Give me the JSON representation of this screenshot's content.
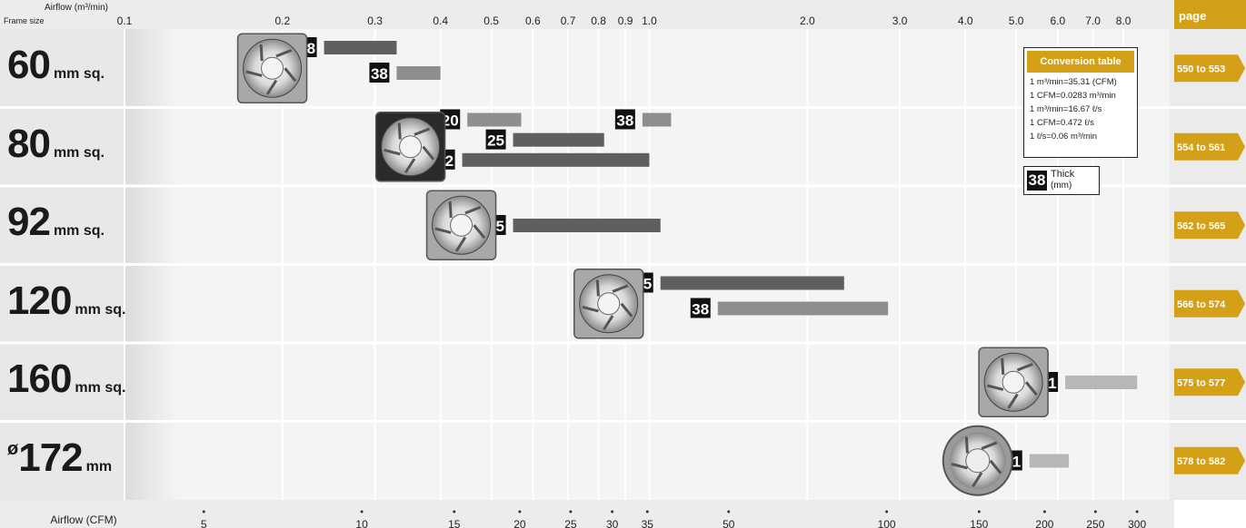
{
  "chart_data": {
    "type": "range-bar",
    "axis_top": {
      "label": "Airflow (m³/min)",
      "scale": "log",
      "ticks": [
        "0.1",
        "0.2",
        "0.3",
        "0.4",
        "0.5",
        "0.6",
        "0.7",
        "0.8",
        "0.9",
        "1.0",
        "2.0",
        "3.0",
        "4.0",
        "5.0",
        "6.0",
        "7.0",
        "8.0"
      ]
    },
    "axis_bottom": {
      "label": "Airflow (CFM)",
      "scale": "log",
      "ticks": [
        "5",
        "10",
        "15",
        "20",
        "25",
        "30",
        "35",
        "50",
        "100",
        "150",
        "200",
        "250",
        "300"
      ]
    },
    "frame_size_label": "Frame size",
    "page_header": "page",
    "rows": [
      {
        "size_main": "60",
        "size_unit": "mm sq.",
        "size_prefix": "",
        "pages": "550 to 553",
        "fan_icon": "fan-60-image",
        "bars": [
          {
            "thickness": "28",
            "min_m3": 0.24,
            "max_m3": 0.33
          },
          {
            "thickness": "38",
            "min_m3": 0.33,
            "max_m3": 0.4
          }
        ]
      },
      {
        "size_main": "80",
        "size_unit": "mm sq.",
        "size_prefix": "",
        "pages": "554 to 561",
        "fan_icon": "fan-80-image",
        "bars": [
          {
            "thickness": "20",
            "min_m3": 0.45,
            "max_m3": 0.57
          },
          {
            "thickness": "25",
            "min_m3": 0.55,
            "max_m3": 0.82
          },
          {
            "thickness": "38",
            "min_m3": 0.97,
            "max_m3": 1.1
          },
          {
            "thickness": "42",
            "min_m3": 0.44,
            "max_m3": 1.0
          }
        ]
      },
      {
        "size_main": "92",
        "size_unit": "mm sq.",
        "size_prefix": "",
        "pages": "562 to 565",
        "fan_icon": "fan-92-image",
        "bars": [
          {
            "thickness": "25",
            "min_m3": 0.55,
            "max_m3": 1.05
          }
        ]
      },
      {
        "size_main": "120",
        "size_unit": "mm sq.",
        "size_prefix": "",
        "pages": "566 to 574",
        "fan_icon": "fan-120-image",
        "bars": [
          {
            "thickness": "25",
            "min_m3": 1.05,
            "max_m3": 2.35
          },
          {
            "thickness": "38",
            "min_m3": 1.35,
            "max_m3": 2.85
          }
        ]
      },
      {
        "size_main": "160",
        "size_unit": "mm sq.",
        "size_prefix": "",
        "pages": "575 to 577",
        "fan_icon": "fan-160-image",
        "bars": [
          {
            "thickness": "51",
            "min_m3": 6.2,
            "max_m3": 8.5
          }
        ]
      },
      {
        "size_main": "172",
        "size_unit": "mm",
        "size_prefix": "ø",
        "pages": "578 to 582",
        "fan_icon": "fan-172-image",
        "bars": [
          {
            "thickness": "51",
            "min_m3": 5.3,
            "max_m3": 6.3
          }
        ]
      }
    ],
    "conversion_table": {
      "title": "Conversion table",
      "lines": [
        "1 m³/min=35.31 (CFM)",
        "1 CFM=0.0283 m³/min",
        "1 m³/min=16.67 ℓ/s",
        "1 CFM=0.472 ℓ/s",
        "1 ℓ/s=0.06 m³/min"
      ]
    },
    "legend": {
      "badge": "38",
      "text": "Thick",
      "unit": "(mm)"
    },
    "colors": {
      "accent": "#d4a017",
      "bar_dark": "#5f5f5f",
      "bar_mid": "#8e8e8e",
      "bar_light": "#b7b7b7",
      "row_shade": "#e8e8e8",
      "badge": "#111111"
    }
  }
}
